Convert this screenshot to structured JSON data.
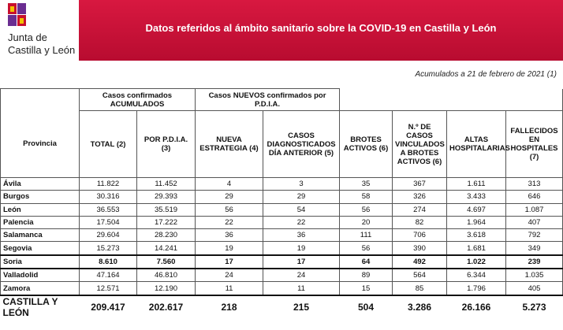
{
  "header": {
    "logo_text": [
      "Junta de",
      "Castilla y León"
    ],
    "title": "Datos referidos al ámbito sanitario sobre la COVID-19 en Castilla y León",
    "subtitle": "Acumulados a 21 de febrero de 2021 (1)"
  },
  "table": {
    "group_headers": [
      "Casos confirmados ACUMULADOS",
      "Casos NUEVOS confirmados por P.D.I.A."
    ],
    "columns": [
      "Provincia",
      "TOTAL (2)",
      "POR P.D.I.A. (3)",
      "NUEVA ESTRATEGIA (4)",
      "CASOS DIAGNOSTICADOS DÍA ANTERIOR (5)",
      "BROTES ACTIVOS (6)",
      "N.º DE CASOS VINCULADOS A BROTES ACTIVOS (6)",
      "ALTAS HOSPITALARIAS",
      "FALLECIDOS EN HOSPITALES (7)"
    ],
    "rows": [
      [
        "Ávila",
        "11.822",
        "11.452",
        "4",
        "3",
        "35",
        "367",
        "1.611",
        "313"
      ],
      [
        "Burgos",
        "30.316",
        "29.393",
        "29",
        "29",
        "58",
        "326",
        "3.433",
        "646"
      ],
      [
        "León",
        "36.553",
        "35.519",
        "56",
        "54",
        "56",
        "274",
        "4.697",
        "1.087"
      ],
      [
        "Palencia",
        "17.504",
        "17.222",
        "22",
        "22",
        "20",
        "82",
        "1.964",
        "407"
      ],
      [
        "Salamanca",
        "29.604",
        "28.230",
        "36",
        "36",
        "111",
        "706",
        "3.618",
        "792"
      ],
      [
        "Segovia",
        "15.273",
        "14.241",
        "19",
        "19",
        "56",
        "390",
        "1.681",
        "349"
      ],
      [
        "Soria",
        "8.610",
        "7.560",
        "17",
        "17",
        "64",
        "492",
        "1.022",
        "239"
      ],
      [
        "Valladolid",
        "47.164",
        "46.810",
        "24",
        "24",
        "89",
        "564",
        "6.344",
        "1.035"
      ],
      [
        "Zamora",
        "12.571",
        "12.190",
        "11",
        "11",
        "15",
        "85",
        "1.796",
        "405"
      ]
    ],
    "total": [
      "CASTILLA Y LEÓN",
      "209.417",
      "202.617",
      "218",
      "215",
      "504",
      "3.286",
      "26.166",
      "5.273"
    ]
  }
}
